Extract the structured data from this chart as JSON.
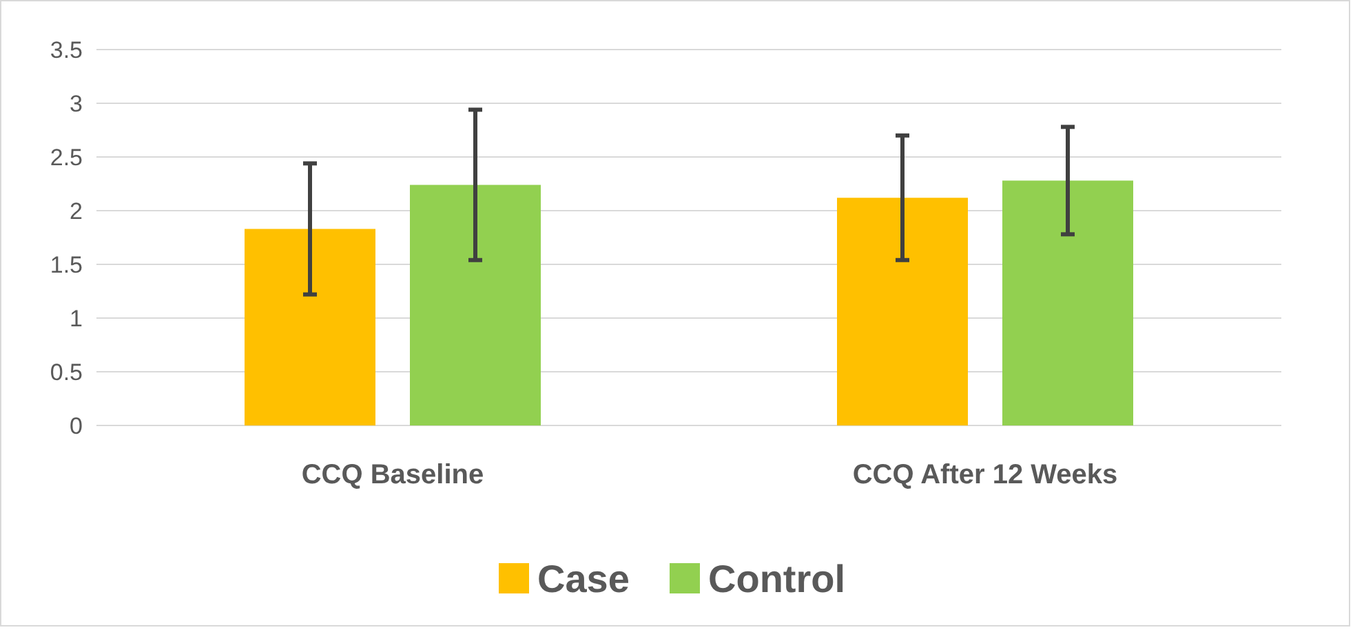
{
  "chart_data": {
    "type": "bar",
    "categories": [
      "CCQ Baseline",
      "CCQ After 12 Weeks"
    ],
    "series": [
      {
        "name": "Case",
        "color": "#ffc000",
        "values": [
          1.83,
          2.12
        ],
        "errors": [
          0.61,
          0.58
        ]
      },
      {
        "name": "Control",
        "color": "#92d050",
        "values": [
          2.24,
          2.28
        ],
        "errors": [
          0.7,
          0.5
        ]
      }
    ],
    "ylim": [
      0,
      3.5
    ],
    "yticks": [
      0,
      0.5,
      1,
      1.5,
      2,
      2.5,
      3,
      3.5
    ],
    "grid": "y",
    "legend": "bottom"
  }
}
